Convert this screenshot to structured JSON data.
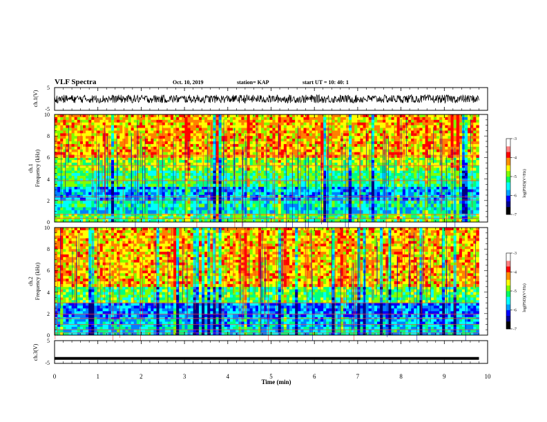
{
  "header": {
    "title": "VLF Spectra",
    "date": "Oct. 10, 2019",
    "station": "station= KAP",
    "start_time": "start UT = 10: 40: 1"
  },
  "chart_data": [
    {
      "type": "line",
      "panel": "ch1-waveform",
      "ylabel": "ch.1(V)",
      "ylim": [
        -5,
        5
      ],
      "yticks": [
        "5",
        "-5"
      ],
      "xlim": [
        0,
        10
      ],
      "trace": {
        "end_time_min": 9.8,
        "center_v": 0,
        "amplitude_v": 1.8
      },
      "color": "#000000"
    },
    {
      "type": "heatmap",
      "panel": "ch1-spectrogram",
      "ylabel": "ch.1\nFrequency (kHz)",
      "ylim": [
        0,
        10
      ],
      "yticks": [
        "0",
        "2",
        "4",
        "6",
        "8",
        "10"
      ],
      "xlim": [
        0,
        10
      ],
      "end_time_min": 9.8,
      "colorbar": {
        "label": "log(PSD)(V²/Hz)",
        "range": [
          -7,
          -3
        ],
        "ticks": [
          "-3",
          "-4",
          "-5",
          "-6",
          "-7"
        ]
      },
      "bands": [
        {
          "f": [
            0.0,
            0.8
          ],
          "level": -4.8
        },
        {
          "f": [
            0.8,
            1.4
          ],
          "level": -5.4
        },
        {
          "f": [
            1.4,
            2.0
          ],
          "level": -5.2
        },
        {
          "f": [
            2.0,
            3.3
          ],
          "level": -5.7
        },
        {
          "f": [
            3.3,
            4.8
          ],
          "level": -5.0
        },
        {
          "f": [
            4.8,
            6.0
          ],
          "level": -4.5
        },
        {
          "f": [
            6.0,
            10.0
          ],
          "level": -3.9
        }
      ],
      "lines_khz": [
        0.35,
        0.7,
        2.05,
        2.35,
        3.85,
        5.25,
        6.15
      ]
    },
    {
      "type": "heatmap",
      "panel": "ch2-spectrogram",
      "ylabel": "ch.2\nFrequency (kHz)",
      "ylim": [
        0,
        10
      ],
      "yticks": [
        "0",
        "2",
        "4",
        "6",
        "8",
        "10"
      ],
      "xlim": [
        0,
        10
      ],
      "end_time_min": 9.8,
      "colorbar": {
        "label": "log(PSD)(V²/Hz)",
        "range": [
          -7,
          -3
        ],
        "ticks": [
          "-3",
          "-4",
          "-5",
          "-6",
          "-7"
        ]
      },
      "bands": [
        {
          "f": [
            0.0,
            0.8
          ],
          "level": -5.4
        },
        {
          "f": [
            0.8,
            1.7
          ],
          "level": -5.6
        },
        {
          "f": [
            1.7,
            3.0
          ],
          "level": -5.9
        },
        {
          "f": [
            3.0,
            4.5
          ],
          "level": -4.8
        },
        {
          "f": [
            4.5,
            10.0
          ],
          "level": -3.9
        }
      ],
      "lines_khz": [
        0.2,
        0.5,
        1.0,
        1.55,
        1.95,
        3.0
      ]
    },
    {
      "type": "line",
      "panel": "ch3-waveform",
      "ylabel": "ch.3(V)",
      "ylim": [
        -5,
        5
      ],
      "yticks": [
        "5",
        "-5"
      ],
      "xlim": [
        0,
        10
      ],
      "xlabel": "Time (min)",
      "xticks": [
        "0",
        "1",
        "2",
        "3",
        "4",
        "5",
        "6",
        "7",
        "8",
        "9",
        "10"
      ],
      "trace": {
        "end_time_min": 9.8,
        "center_v": -2.6,
        "amplitude_v": 0.35
      },
      "color": "#000000"
    }
  ],
  "colormap": [
    "#000080",
    "#0000ff",
    "#0080ff",
    "#00ffff",
    "#00ff80",
    "#80ff00",
    "#ffff00",
    "#ff8000",
    "#ff0000",
    "#ffffff"
  ]
}
